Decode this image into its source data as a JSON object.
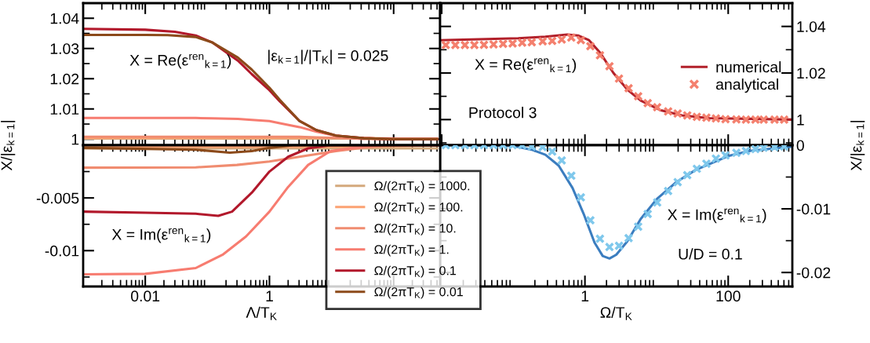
{
  "chart_data": [
    {
      "type": "line",
      "log": "x",
      "xlim": [
        0.001,
        560
      ],
      "ylim": [
        0.998,
        1.045
      ],
      "xticks": [
        0.01,
        1,
        100
      ],
      "yticks": [
        1,
        1.01,
        1.02,
        1.03,
        1.04
      ],
      "tick_labels": "y",
      "grid": false,
      "ylabel": "X/|ε$_{k=1}$|",
      "annotations": [
        "X = Re(ε$^{ren}$$_{k=1}$)",
        "|ε$_{k=1}$|/|T$_{K}$| = 0.025"
      ],
      "series": [
        {
          "color": "#d4a97c",
          "x": [
            0.001,
            500
          ],
          "values": [
            1.0002,
            1.0002
          ]
        },
        {
          "color": "#fca272",
          "x": [
            0.001,
            33,
            100,
            500
          ],
          "values": [
            1.0004,
            1.0004,
            1.0002,
            1.0
          ]
        },
        {
          "color": "#f08c70",
          "x": [
            0.001,
            0.12,
            1,
            3.05,
            5.7,
            11.8,
            33,
            100,
            500
          ],
          "values": [
            1.0008,
            1.0008,
            1.0008,
            1.0008,
            1.0006,
            1.0004,
            1.0001,
            1.0,
            1.0
          ]
        },
        {
          "color": "#f77c70",
          "x": [
            0.001,
            0.01,
            0.023,
            0.065,
            0.12,
            0.31,
            0.52,
            1,
            1.47,
            3.05,
            5.7,
            11.8,
            33,
            100,
            500
          ],
          "values": [
            1.007,
            1.007,
            1.007,
            1.007,
            1.0069,
            1.0067,
            1.0064,
            1.006,
            1.0053,
            1.004,
            1.0025,
            1.0011,
            1.0003,
            1.0,
            1.0
          ]
        },
        {
          "color": "#b2182b",
          "x": [
            0.001,
            0.01,
            0.03,
            0.065,
            0.12,
            0.31,
            0.52,
            1,
            1.47,
            3.05,
            5.7,
            11.8,
            33,
            100,
            500
          ],
          "values": [
            1.0365,
            1.0362,
            1.0355,
            1.0343,
            1.032,
            1.026,
            1.0215,
            1.0162,
            1.0125,
            1.006,
            1.003,
            1.0012,
            1.0003,
            1.0,
            1.0
          ]
        },
        {
          "color": "#8c4a1a",
          "x": [
            0.001,
            0.01,
            0.023,
            0.065,
            0.12,
            0.31,
            0.52,
            1,
            1.47,
            3.05,
            5.7,
            11.8,
            33,
            100,
            500
          ],
          "values": [
            1.0345,
            1.0345,
            1.0344,
            1.0338,
            1.032,
            1.027,
            1.023,
            1.017,
            1.013,
            1.006,
            1.003,
            1.0012,
            1.0003,
            1.0,
            1.0
          ]
        }
      ]
    },
    {
      "type": "line",
      "log": "x",
      "xlim": [
        0.001,
        560
      ],
      "ylim": [
        -0.0134,
        0
      ],
      "xticks": [
        0.01,
        1,
        {
          "value": 100,
          "label": null
        }
      ],
      "yticks": [
        -0.01,
        -0.005
      ],
      "grid": false,
      "xlabel": "Λ/T$_{K}$",
      "legend": "bottom right",
      "annotations": [
        "X = Im(ε$^{ren}$$_{k=1}$)"
      ],
      "series": [
        {
          "name": "Ω/(2πT$_{K}$) = 1000.",
          "color": "#d4a97c",
          "x": [
            0.001,
            500
          ],
          "values": [
            -0.0003,
            -0.0003
          ]
        },
        {
          "name": "Ω/(2πT$_{K}$) = 100.",
          "color": "#fca272",
          "x": [
            0.001,
            30,
            100,
            560
          ],
          "values": [
            -0.00015,
            -0.00015,
            -0.0001,
            0
          ]
        },
        {
          "name": "Ω/(2πT$_{K}$) = 10.",
          "color": "#f08c70",
          "x": [
            0.001,
            0.065,
            0.3,
            1,
            4.2,
            11.8,
            41,
            100,
            560
          ],
          "values": [
            -0.00213,
            -0.0021,
            -0.00187,
            -0.00155,
            -0.00096,
            -0.00056,
            -0.00017,
            0,
            0
          ]
        },
        {
          "name": "Ω/(2πT$_{K}$) = 1.",
          "color": "#f77c70",
          "x": [
            0.001,
            0.01,
            0.065,
            0.18,
            0.42,
            1,
            2,
            4.2,
            9.6,
            33,
            100,
            560
          ],
          "values": [
            -0.01225,
            -0.0122,
            -0.01165,
            -0.01035,
            -0.00865,
            -0.0063,
            -0.00396,
            -0.00187,
            -0.00056,
            -0.0001,
            0,
            0
          ]
        },
        {
          "name": "Ω/(2πT$_{K}$) = 0.1",
          "color": "#b2182b",
          "x": [
            0.001,
            0.01,
            0.065,
            0.15,
            0.25,
            0.52,
            1,
            2,
            4.2,
            9.6,
            100,
            560
          ],
          "values": [
            -0.0063,
            -0.0064,
            -0.0065,
            -0.0067,
            -0.0063,
            -0.0045,
            -0.0025,
            -0.0011,
            -0.0003,
            0,
            0,
            0
          ]
        },
        {
          "name": "Ω/(2πT$_{K}$) = 0.01",
          "color": "#8c4a1a",
          "x": [
            0.001,
            0.065,
            0.23,
            0.52,
            1,
            2.4,
            10,
            560
          ],
          "values": [
            -0.00025,
            -0.00043,
            -0.0007,
            -0.00056,
            -0.00025,
            0,
            0,
            0
          ]
        }
      ]
    },
    {
      "type": "line",
      "log": "x",
      "xlim": [
        0.0095,
        786
      ],
      "ylim": [
        0.989,
        1.05
      ],
      "xticks": [
        0.01,
        1,
        100
      ],
      "yticks": [
        1,
        1.02,
        1.04
      ],
      "tick_labels": "y",
      "grid": false,
      "ylabel": "X/|ε$_{k=1}$|",
      "legend": "right",
      "annotations": [
        "X = Re(ε$^{ren}$$_{k=1}$)",
        "Protocol 3"
      ],
      "series": [
        {
          "name": "numerical",
          "type": "line",
          "color": "#b2202a",
          "x": [
            0.0095,
            0.117,
            0.28,
            0.565,
            0.8,
            1.14,
            1.62,
            2.5,
            3.9,
            6.0,
            11.2,
            22.5,
            54,
            786
          ],
          "values": [
            1.0341,
            1.0349,
            1.0356,
            1.0365,
            1.0361,
            1.0341,
            1.0288,
            1.02,
            1.0129,
            1.0082,
            1.0041,
            1.0018,
            1.0006,
            1.0
          ]
        },
        {
          "name": "analytical",
          "type": "scatter",
          "marker": "cross",
          "color": "#f4806e",
          "x": [
            0.0114,
            0.0155,
            0.0211,
            0.0286,
            0.0389,
            0.053,
            0.072,
            0.0978,
            0.133,
            0.181,
            0.257,
            0.349,
            0.474,
            0.645,
            0.877,
            1.19,
            1.62,
            2.2,
            2.99,
            4.07,
            5.53,
            7.52,
            10.2,
            14.5,
            19.7,
            26.8,
            36.5,
            49.6,
            67.4,
            91.6,
            130,
            177,
            240,
            313,
            444,
            604
          ],
          "values": [
            1.032,
            1.032,
            1.032,
            1.032,
            1.0321,
            1.0323,
            1.0325,
            1.0327,
            1.033,
            1.0332,
            1.0336,
            1.0338,
            1.0344,
            1.0352,
            1.0341,
            1.0315,
            1.0276,
            1.0229,
            1.0176,
            1.0135,
            1.01,
            1.0071,
            1.0053,
            1.0035,
            1.0026,
            1.0018,
            1.0012,
            1.0008,
            1.0005,
            1.0002,
            1.0001,
            1.0,
            1.0,
            1.0,
            1.0,
            1.0
          ]
        }
      ]
    },
    {
      "type": "line",
      "log": "x",
      "xlim": [
        0.0095,
        786
      ],
      "ylim": [
        -0.0222,
        0
      ],
      "xticks": [
        1,
        100
      ],
      "yticks": [
        -0.02,
        -0.01,
        0
      ],
      "grid": false,
      "xlabel": "Ω/T$_{K}$",
      "annotations": [
        "X = Im(ε$^{ren}$$_{k=1}$)",
        "U/D = 0.1"
      ],
      "series": [
        {
          "type": "line",
          "color": "#3b7dbf",
          "x": [
            0.0095,
            0.0976,
            0.18,
            0.28,
            0.43,
            0.67,
            0.96,
            1.36,
            1.77,
            2.2,
            2.74,
            3.9,
            6.0,
            10.2,
            18.9,
            34.9,
            100,
            201,
            786
          ],
          "values": [
            0,
            -0.0001,
            -0.0007,
            -0.0015,
            -0.0032,
            -0.0067,
            -0.0108,
            -0.0153,
            -0.0174,
            -0.0178,
            -0.0172,
            -0.0151,
            -0.0116,
            -0.0084,
            -0.0058,
            -0.0039,
            -0.0017,
            -0.0009,
            -0.0002
          ]
        },
        {
          "type": "scatter",
          "marker": "cross",
          "color": "#7fc8ec",
          "x": [
            0.0114,
            0.0155,
            0.0211,
            0.0286,
            0.0389,
            0.053,
            0.072,
            0.0978,
            0.133,
            0.181,
            0.257,
            0.349,
            0.474,
            0.645,
            0.877,
            1.19,
            1.62,
            2.2,
            2.99,
            4.07,
            5.53,
            7.52,
            10.2,
            14.5,
            19.7,
            26.8,
            36.5,
            49.6,
            67.4,
            91.6,
            130,
            177,
            240,
            313,
            444,
            604
          ],
          "values": [
            0,
            0,
            0,
            0,
            0,
            0,
            0,
            0,
            0,
            -0.0002,
            -0.0003,
            -0.001,
            -0.0024,
            -0.0048,
            -0.0082,
            -0.0118,
            -0.0147,
            -0.016,
            -0.0158,
            -0.0146,
            -0.0128,
            -0.0108,
            -0.009,
            -0.0072,
            -0.0058,
            -0.0047,
            -0.0037,
            -0.0029,
            -0.0021,
            -0.0016,
            -0.0012,
            -0.0009,
            -0.0006,
            -0.0004,
            -0.0003,
            -0.0002
          ]
        }
      ]
    }
  ]
}
